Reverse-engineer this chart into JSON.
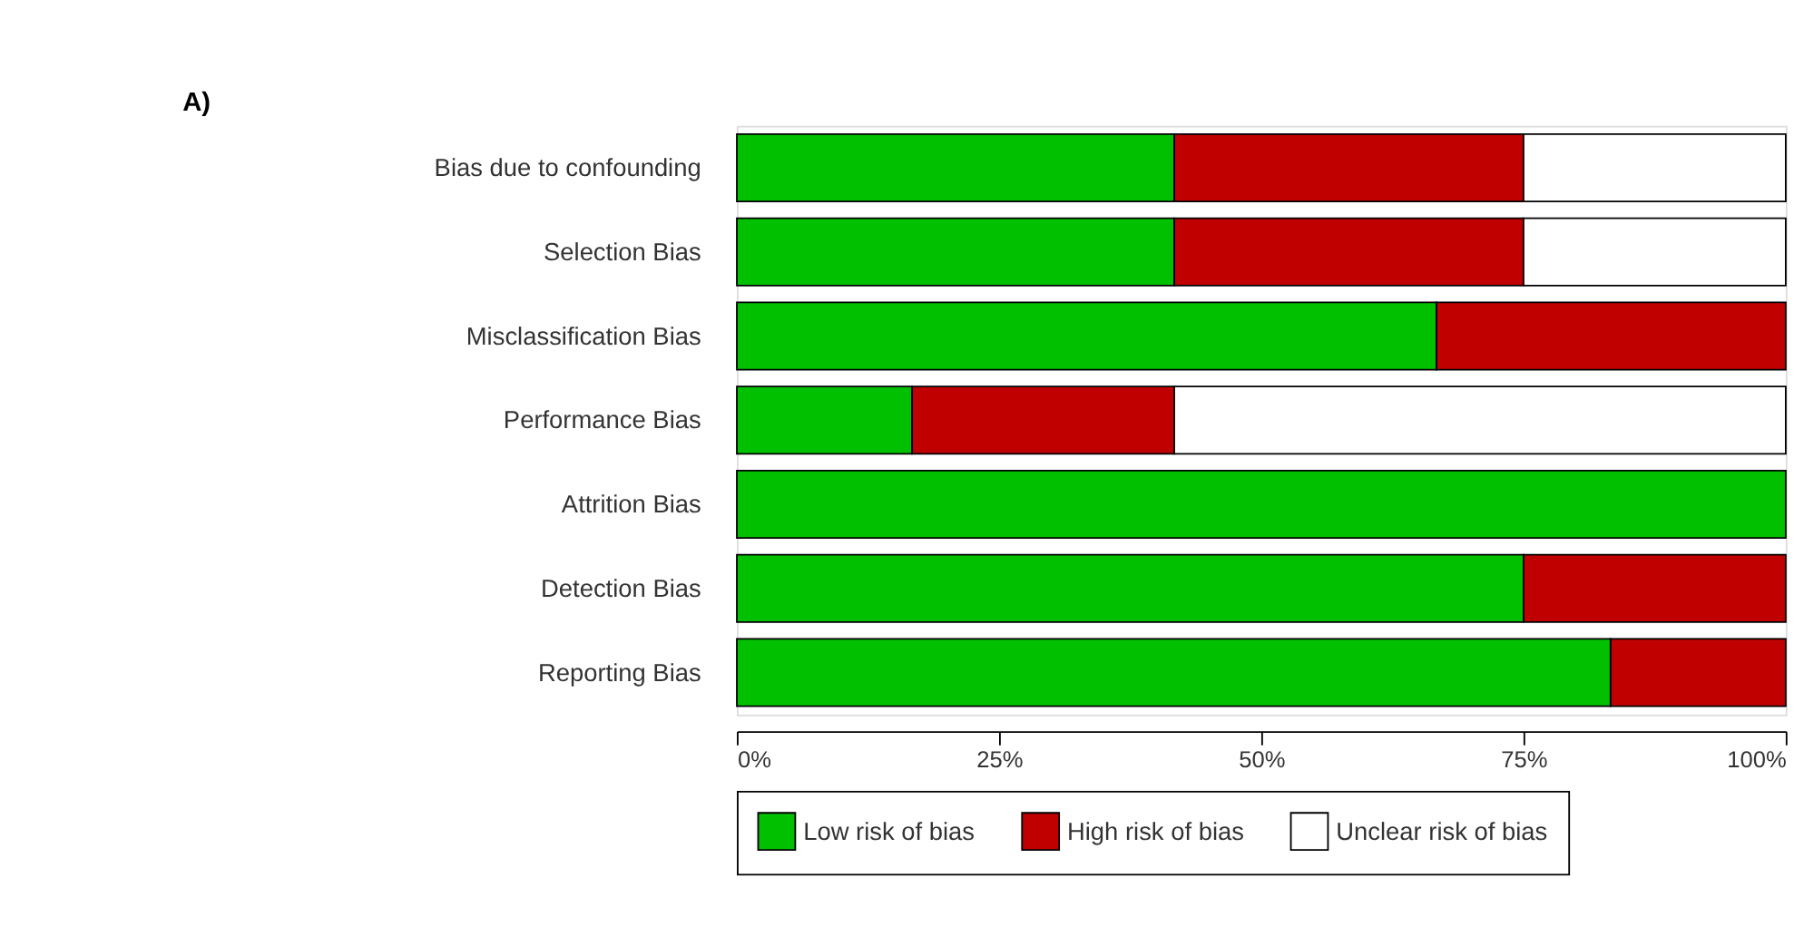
{
  "chart_data": {
    "type": "bar",
    "orientation": "horizontal",
    "stacked": true,
    "categories": [
      "Bias due to confounding",
      "Selection Bias",
      "Misclassification Bias",
      "Performance Bias",
      "Attrition Bias",
      "Detection Bias",
      "Reporting Bias"
    ],
    "series": [
      {
        "name": "Low risk of bias",
        "color": "#00c000",
        "values": [
          41.7,
          41.7,
          66.7,
          16.7,
          100,
          75,
          83.3
        ]
      },
      {
        "name": "High risk of bias",
        "color": "#c00000",
        "values": [
          33.3,
          33.3,
          33.3,
          25,
          0,
          25,
          16.7
        ]
      },
      {
        "name": "Unclear risk of bias",
        "color": "#ffffff",
        "values": [
          25,
          25,
          0,
          58.3,
          0,
          0,
          0
        ]
      }
    ],
    "xlim": [
      0,
      100
    ],
    "xticks": [
      {
        "value": 0,
        "label": "0%"
      },
      {
        "value": 25,
        "label": "25%"
      },
      {
        "value": 50,
        "label": "50%"
      },
      {
        "value": 75,
        "label": "75%"
      },
      {
        "value": 100,
        "label": "100%"
      }
    ],
    "grid": false,
    "legend": "bottom",
    "annotations": [
      "A)"
    ]
  }
}
